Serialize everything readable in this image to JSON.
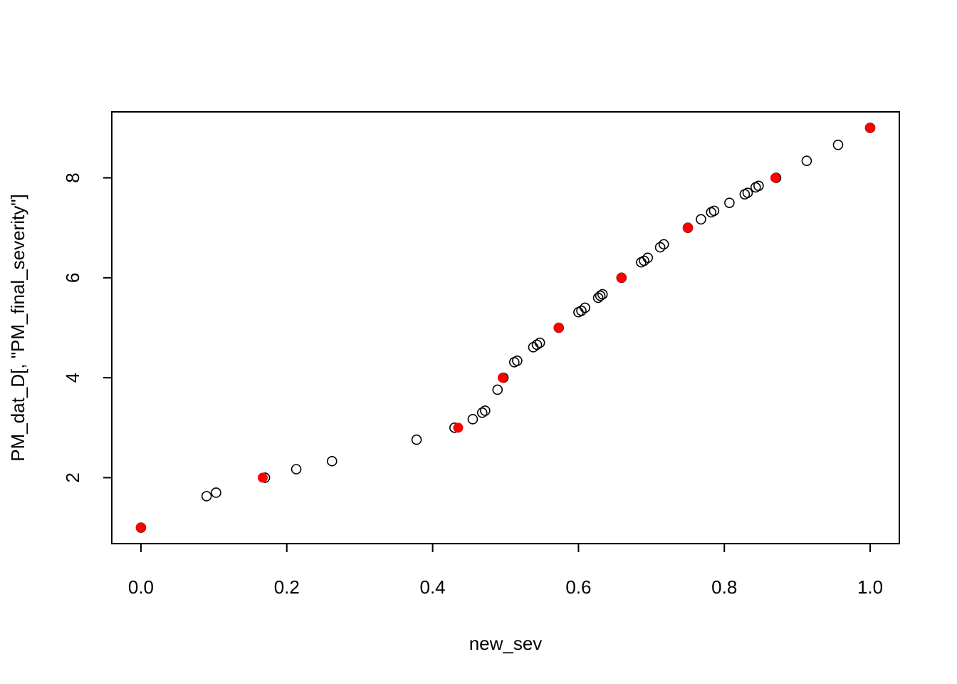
{
  "chart_data": {
    "type": "scatter",
    "title": "",
    "xlabel": "new_sev",
    "ylabel": "PM_dat_D[, \"PM_final_severity\"]",
    "xlim": [
      -0.04,
      1.04
    ],
    "ylim": [
      0.68,
      9.32
    ],
    "x_ticks": [
      0.0,
      0.2,
      0.4,
      0.6,
      0.8,
      1.0
    ],
    "x_tick_labels": [
      "0.0",
      "0.2",
      "0.4",
      "0.6",
      "0.8",
      "1.0"
    ],
    "y_ticks": [
      2,
      4,
      6,
      8
    ],
    "y_tick_labels": [
      "2",
      "4",
      "6",
      "8"
    ],
    "grid": false,
    "legend": "none",
    "series": [
      {
        "style": "open-circle",
        "color": "#000000",
        "points": [
          [
            0.0,
            1.0
          ],
          [
            0.09,
            1.63
          ],
          [
            0.103,
            1.7
          ],
          [
            0.17,
            2.0
          ],
          [
            0.213,
            2.17
          ],
          [
            0.262,
            2.33
          ],
          [
            0.378,
            2.76
          ],
          [
            0.43,
            3.0
          ],
          [
            0.455,
            3.17
          ],
          [
            0.468,
            3.3
          ],
          [
            0.472,
            3.34
          ],
          [
            0.489,
            3.76
          ],
          [
            0.497,
            4.0
          ],
          [
            0.512,
            4.31
          ],
          [
            0.516,
            4.34
          ],
          [
            0.538,
            4.61
          ],
          [
            0.543,
            4.66
          ],
          [
            0.547,
            4.7
          ],
          [
            0.573,
            5.0
          ],
          [
            0.6,
            5.31
          ],
          [
            0.604,
            5.34
          ],
          [
            0.609,
            5.4
          ],
          [
            0.627,
            5.6
          ],
          [
            0.63,
            5.64
          ],
          [
            0.633,
            5.67
          ],
          [
            0.659,
            6.0
          ],
          [
            0.686,
            6.31
          ],
          [
            0.69,
            6.34
          ],
          [
            0.695,
            6.4
          ],
          [
            0.712,
            6.61
          ],
          [
            0.717,
            6.67
          ],
          [
            0.75,
            7.0
          ],
          [
            0.768,
            7.17
          ],
          [
            0.782,
            7.31
          ],
          [
            0.786,
            7.34
          ],
          [
            0.807,
            7.5
          ],
          [
            0.828,
            7.67
          ],
          [
            0.832,
            7.7
          ],
          [
            0.843,
            7.81
          ],
          [
            0.847,
            7.84
          ],
          [
            0.871,
            8.0
          ],
          [
            0.913,
            8.34
          ],
          [
            0.956,
            8.66
          ],
          [
            1.0,
            9.0
          ]
        ]
      },
      {
        "style": "filled-circle",
        "color": "#ff0000",
        "points": [
          [
            0.0,
            1.0
          ],
          [
            0.167,
            2.0
          ],
          [
            0.435,
            3.0
          ],
          [
            0.496,
            4.0
          ],
          [
            0.573,
            5.0
          ],
          [
            0.659,
            6.0
          ],
          [
            0.75,
            7.0
          ],
          [
            0.87,
            8.0
          ],
          [
            1.0,
            9.0
          ]
        ]
      }
    ]
  }
}
